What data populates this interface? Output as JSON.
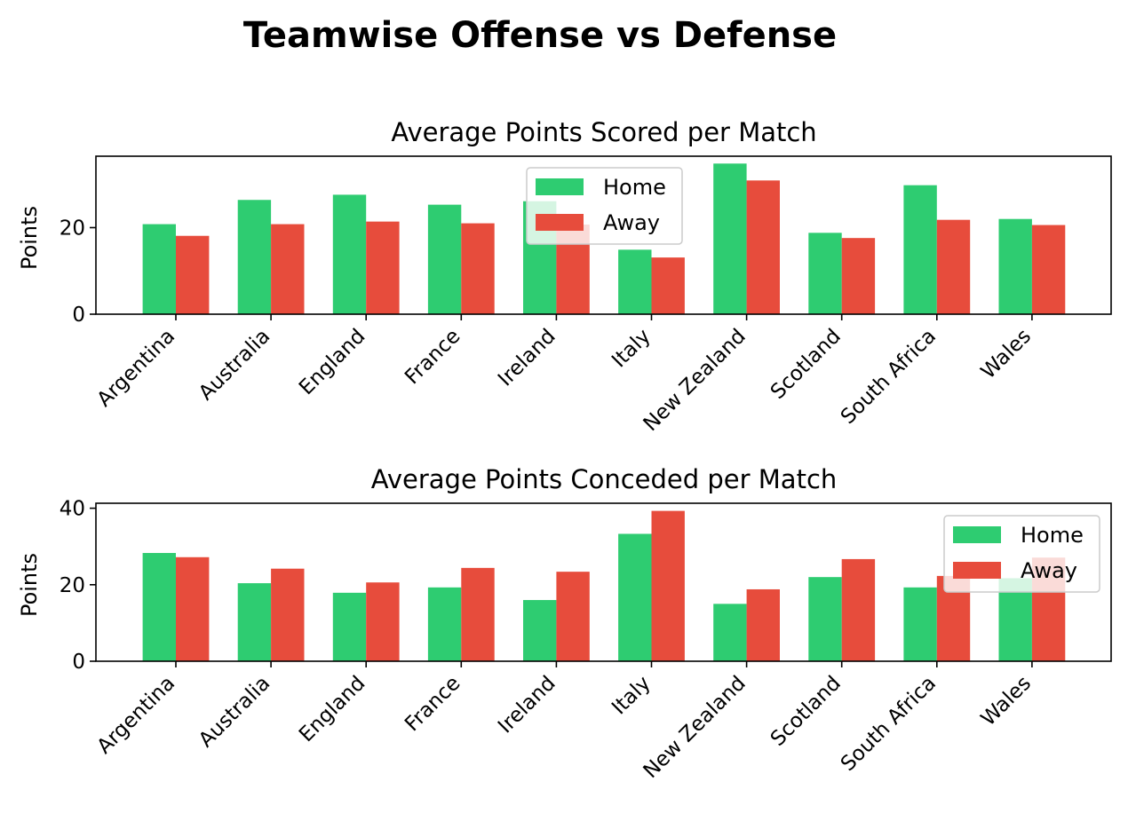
{
  "figure_title": "Teamwise Offense vs Defense",
  "colors": {
    "home": "#2ecc71",
    "away": "#e74c3c"
  },
  "chart_data": [
    {
      "type": "bar",
      "title": "Average Points Scored per Match",
      "xlabel": "",
      "ylabel": "Points",
      "categories": [
        "Argentina",
        "Australia",
        "England",
        "France",
        "Ireland",
        "Italy",
        "New Zealand",
        "Scotland",
        "South Africa",
        "Wales"
      ],
      "series": [
        {
          "name": "Home",
          "color": "#2ecc71",
          "values": [
            20.8,
            26.4,
            27.6,
            25.3,
            26.1,
            14.9,
            34.8,
            18.8,
            29.8,
            22.0
          ]
        },
        {
          "name": "Away",
          "color": "#e74c3c",
          "values": [
            18.1,
            20.8,
            21.4,
            21.0,
            20.7,
            13.1,
            30.9,
            17.6,
            21.8,
            20.6
          ]
        }
      ],
      "yticks": [
        0,
        20
      ],
      "ylim": [
        0,
        36.5
      ],
      "legend": "upper center",
      "grid": false
    },
    {
      "type": "bar",
      "title": "Average Points Conceded per Match",
      "xlabel": "",
      "ylabel": "Points",
      "categories": [
        "Argentina",
        "Australia",
        "England",
        "France",
        "Ireland",
        "Italy",
        "New Zealand",
        "Scotland",
        "South Africa",
        "Wales"
      ],
      "series": [
        {
          "name": "Home",
          "color": "#2ecc71",
          "values": [
            28.3,
            20.4,
            17.9,
            19.3,
            16.0,
            33.3,
            15.0,
            22.0,
            19.3,
            21.7
          ]
        },
        {
          "name": "Away",
          "color": "#e74c3c",
          "values": [
            27.2,
            24.2,
            20.6,
            24.4,
            23.4,
            39.3,
            18.8,
            26.7,
            22.3,
            27.1
          ]
        }
      ],
      "yticks": [
        0,
        20,
        40
      ],
      "ylim": [
        0,
        41.3
      ],
      "legend": "upper right",
      "grid": false
    }
  ]
}
